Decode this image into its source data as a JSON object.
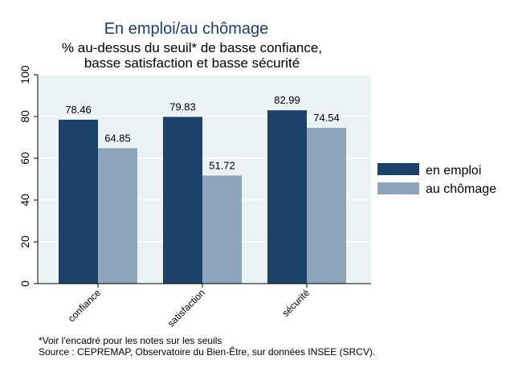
{
  "chart_data": {
    "type": "bar",
    "title": "En emploi/au chômage",
    "subtitle": [
      "% au-dessus du seuil* de basse confiance,",
      "basse satisfaction et basse sécurité"
    ],
    "categories": [
      "confiance",
      "satisfaction",
      "sécurité"
    ],
    "series": [
      {
        "name": "en emploi",
        "values": [
          78.46,
          79.83,
          82.99
        ],
        "color": "#1c426c"
      },
      {
        "name": "au chômage",
        "values": [
          64.85,
          51.72,
          74.54
        ],
        "color": "#8ea4bb"
      }
    ],
    "value_labels": [
      [
        "78.46",
        "79.83",
        "82.99"
      ],
      [
        "64.85",
        "51.72",
        "74.54"
      ]
    ],
    "ylim": [
      0,
      100
    ],
    "yticks": [
      0,
      20,
      40,
      60,
      80,
      100
    ],
    "ytick_labels": [
      "0",
      "20",
      "40",
      "60",
      "80",
      "100"
    ],
    "grid": true,
    "legend_position": "right",
    "plot_background": "#eaf2f3",
    "notes": [
      "*Voir l'encadré pour les notes sur les seuils",
      "Source : CEPREMAP, Observatoire du Bien-Être, sur données INSEE (SRCV)."
    ]
  }
}
